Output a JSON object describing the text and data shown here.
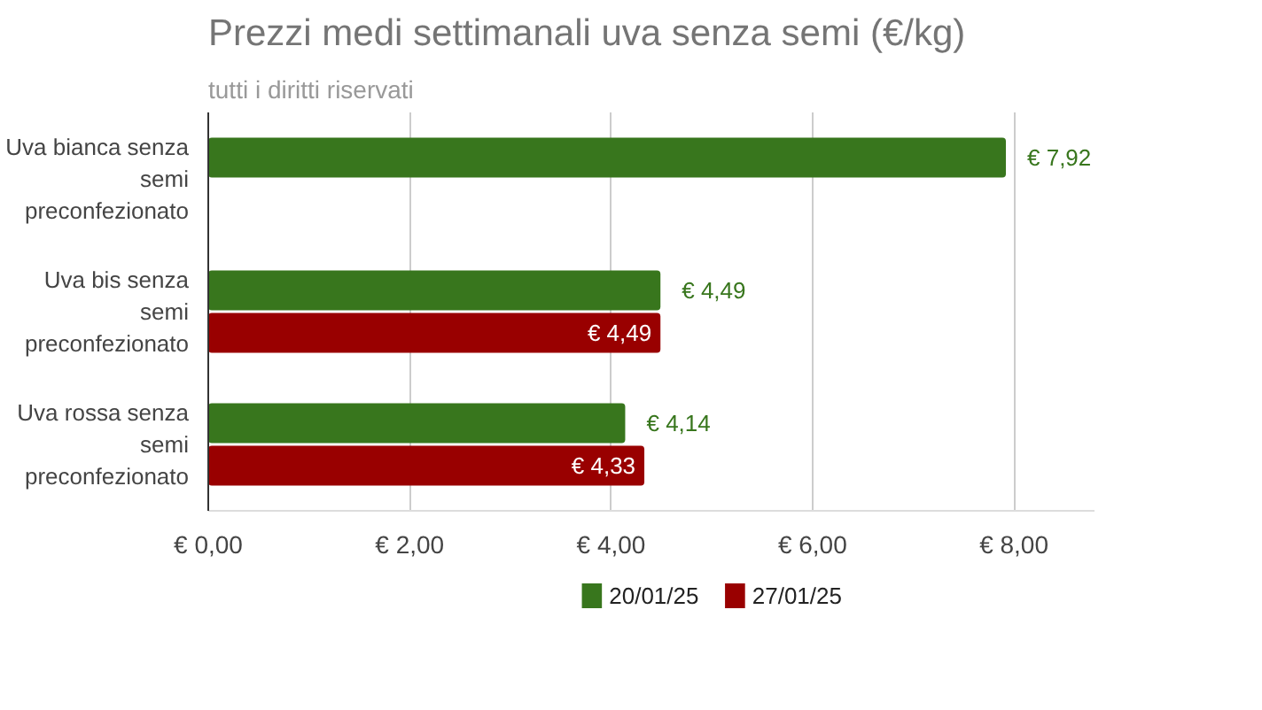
{
  "chart_data": {
    "type": "bar",
    "orientation": "horizontal",
    "title": "Prezzi medi settimanali uva senza semi (€/kg)",
    "subtitle": "tutti i diritti riservati",
    "categories": [
      "Uva bianca senza semi preconfezionato",
      "Uva bis senza semi preconfezionato",
      "Uva rossa senza semi preconfezionato"
    ],
    "series": [
      {
        "name": "20/01/25",
        "color": "#38761d",
        "values": [
          7.92,
          4.49,
          4.14
        ],
        "value_labels": [
          "€ 7,92",
          "€ 4,49",
          "€ 4,14"
        ]
      },
      {
        "name": "27/01/25",
        "color": "#990000",
        "values": [
          null,
          4.49,
          4.33
        ],
        "value_labels": [
          null,
          "€ 4,49",
          "€ 4,33"
        ]
      }
    ],
    "xlim": [
      0,
      8.8
    ],
    "xticks": [
      {
        "value": 0,
        "label": "€ 0,00"
      },
      {
        "value": 2,
        "label": "€ 2,00"
      },
      {
        "value": 4,
        "label": "€ 4,00"
      },
      {
        "value": 6,
        "label": "€ 6,00"
      },
      {
        "value": 8,
        "label": "€ 8,00"
      }
    ],
    "grid": "x",
    "legend": "bottom"
  }
}
